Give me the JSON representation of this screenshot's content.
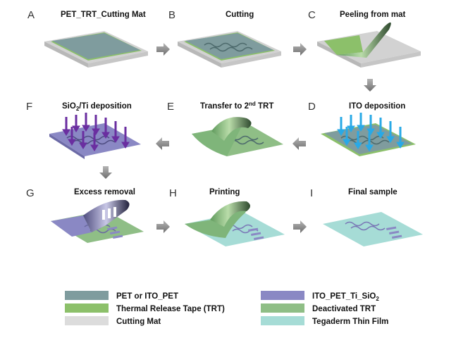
{
  "panels": [
    {
      "letter": "A",
      "title": "PET_TRT_Cutting Mat"
    },
    {
      "letter": "B",
      "title": "Cutting"
    },
    {
      "letter": "C",
      "title": "Peeling from mat"
    },
    {
      "letter": "D",
      "title": "ITO deposition"
    },
    {
      "letter": "E",
      "title_main": "Transfer to 2",
      "title_sup": "nd",
      "title_end": " TRT"
    },
    {
      "letter": "F",
      "title_main": "SiO",
      "title_sub": "2",
      "title_end": "/Ti deposition"
    },
    {
      "letter": "G",
      "title": "Excess removal"
    },
    {
      "letter": "H",
      "title": "Printing"
    },
    {
      "letter": "I",
      "title": "Final sample"
    }
  ],
  "legend": [
    {
      "label": "PET or ITO_PET",
      "color": "#7f9c9e"
    },
    {
      "label": "Thermal Release Tape (TRT)",
      "color": "#8cc06a"
    },
    {
      "label": "Cutting Mat",
      "color": "#dcdcdc"
    },
    {
      "label_main": "ITO_PET_Ti_SiO",
      "label_sub": "2",
      "color": "#8a88c4"
    },
    {
      "label": "Deactivated TRT",
      "color": "#8fbe86"
    },
    {
      "label": "Tegaderm Thin Film",
      "color": "#a6dcd6"
    }
  ],
  "colors": {
    "pet": "#7f9c9e",
    "trt": "#8cc06a",
    "mat": "#dcdcdc",
    "ito_pet_ti_sio2": "#8a88c4",
    "deactivated_trt": "#8fbe86",
    "tegaderm": "#a6dcd6",
    "ito_arrow": "#29a9e6",
    "sio2_arrow": "#6a2ea0",
    "flow_arrow": "#8a8a8a"
  }
}
